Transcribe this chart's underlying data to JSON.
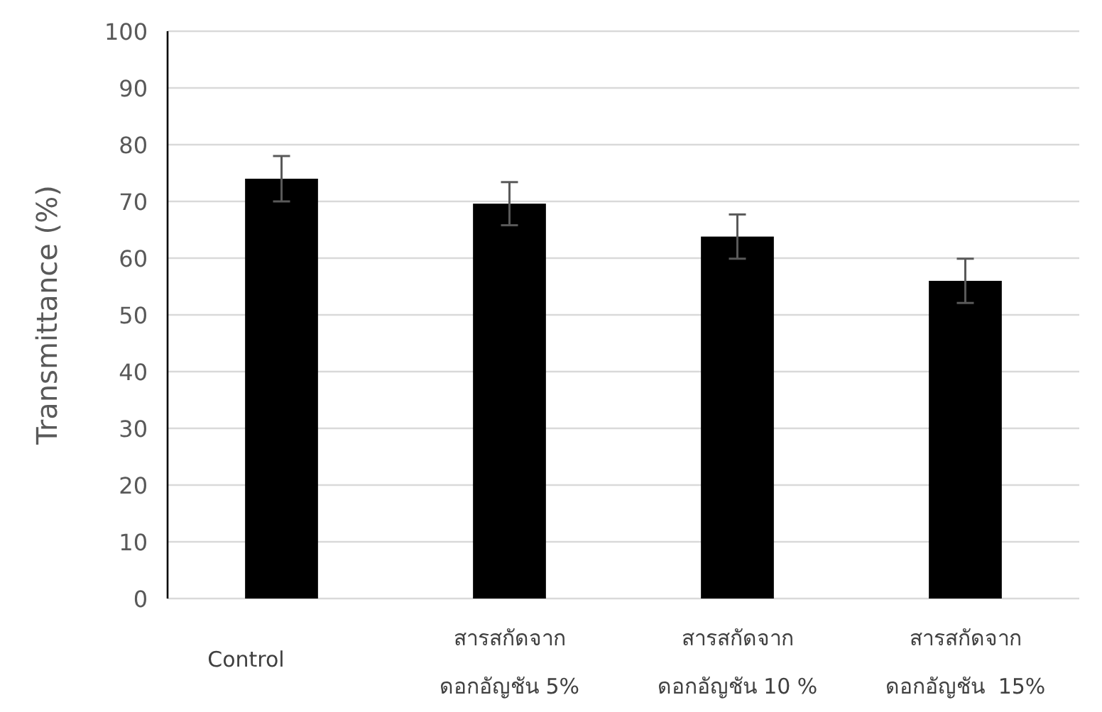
{
  "chart_data": {
    "type": "bar",
    "ylabel": "Transmittance (%)",
    "categories": [
      "Control",
      "สารสกัดจาก\nดอกอัญชัน 5%",
      "สารสกัดจาก\nดอกอัญชัน 10 %",
      "สารสกัดจาก\nดอกอัญชัน  15%"
    ],
    "values": [
      74.0,
      69.6,
      63.8,
      56.0
    ],
    "errors": [
      4.0,
      3.8,
      3.9,
      3.9
    ],
    "color": "#000000",
    "ylim": [
      0,
      100
    ],
    "yticks": [
      0,
      10,
      20,
      30,
      40,
      50,
      60,
      70,
      80,
      90,
      100
    ],
    "grid": "y"
  }
}
